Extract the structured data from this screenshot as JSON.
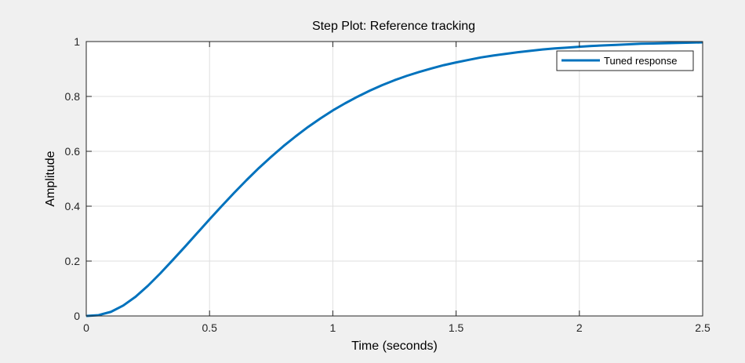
{
  "chart_data": {
    "type": "line",
    "title": "Step Plot: Reference tracking",
    "xlabel": "Time (seconds)",
    "ylabel": "Amplitude",
    "xlim": [
      0,
      2.5
    ],
    "ylim": [
      0,
      1
    ],
    "xticks": [
      0,
      0.5,
      1,
      1.5,
      2,
      2.5
    ],
    "xtick_labels": [
      "0",
      "0.5",
      "1",
      "1.5",
      "2",
      "2.5"
    ],
    "yticks": [
      0,
      0.2,
      0.4,
      0.6,
      0.8,
      1
    ],
    "ytick_labels": [
      "0",
      "0.2",
      "0.4",
      "0.6",
      "0.8",
      "1"
    ],
    "grid": true,
    "legend_position": "top-right",
    "series": [
      {
        "name": "Tuned response",
        "color": "#0072bd",
        "x": [
          0,
          0.05,
          0.1,
          0.15,
          0.2,
          0.25,
          0.3,
          0.35,
          0.4,
          0.45,
          0.5,
          0.55,
          0.6,
          0.65,
          0.7,
          0.75,
          0.8,
          0.85,
          0.9,
          0.95,
          1.0,
          1.05,
          1.1,
          1.15,
          1.2,
          1.25,
          1.3,
          1.35,
          1.4,
          1.45,
          1.5,
          1.55,
          1.6,
          1.65,
          1.7,
          1.75,
          1.8,
          1.85,
          1.9,
          1.95,
          2.0,
          2.05,
          2.1,
          2.15,
          2.2,
          2.25,
          2.3,
          2.35,
          2.4,
          2.45,
          2.5
        ],
        "y": [
          0,
          0.003,
          0.015,
          0.038,
          0.07,
          0.11,
          0.155,
          0.203,
          0.252,
          0.302,
          0.352,
          0.401,
          0.449,
          0.495,
          0.539,
          0.58,
          0.619,
          0.655,
          0.689,
          0.72,
          0.749,
          0.775,
          0.799,
          0.821,
          0.841,
          0.859,
          0.875,
          0.889,
          0.902,
          0.914,
          0.924,
          0.933,
          0.942,
          0.949,
          0.955,
          0.961,
          0.966,
          0.971,
          0.975,
          0.978,
          0.981,
          0.984,
          0.986,
          0.988,
          0.99,
          0.992,
          0.993,
          0.994,
          0.995,
          0.996,
          0.997
        ]
      }
    ]
  }
}
